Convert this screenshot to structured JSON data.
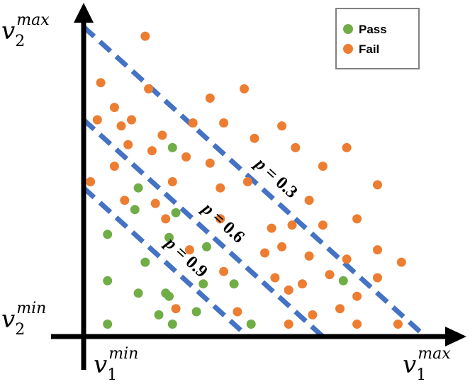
{
  "chart_data": {
    "type": "scatter",
    "title": "",
    "axes": {
      "x": {
        "min_label_base": "v",
        "min_label_sub": "1",
        "min_label_sup": "min",
        "max_label_base": "v",
        "max_label_sub": "1",
        "max_label_sup": "max"
      },
      "y": {
        "min_label_base": "v",
        "min_label_sub": "2",
        "min_label_sup": "min",
        "max_label_base": "v",
        "max_label_sub": "2",
        "max_label_sup": "max"
      }
    },
    "xlim": [
      0,
      1
    ],
    "ylim": [
      0,
      1
    ],
    "grid": false,
    "legend": {
      "placement": "top-right",
      "entries": [
        {
          "label": "Pass",
          "color": "#70AD47"
        },
        {
          "label": "Fail",
          "color": "#ED7D31"
        }
      ]
    },
    "iso_lines": [
      {
        "label_var": "p",
        "label_eq": " = ",
        "value": "0.3",
        "x_intercept": 1.0,
        "y_intercept": 1.0,
        "color": "#4472C4"
      },
      {
        "label_var": "p",
        "label_eq": " = ",
        "value": "0.6",
        "x_intercept": 0.7,
        "y_intercept": 0.7,
        "color": "#4472C4"
      },
      {
        "label_var": "p",
        "label_eq": " = ",
        "value": "0.9",
        "x_intercept": 0.48,
        "y_intercept": 0.48,
        "color": "#4472C4"
      }
    ],
    "series": [
      {
        "name": "Pass",
        "color": "#70AD47",
        "points": [
          [
            0.26,
            0.61
          ],
          [
            0.16,
            0.48
          ],
          [
            0.15,
            0.41
          ],
          [
            0.27,
            0.4
          ],
          [
            0.07,
            0.33
          ],
          [
            0.18,
            0.24
          ],
          [
            0.25,
            0.32
          ],
          [
            0.36,
            0.29
          ],
          [
            0.25,
            0.13
          ],
          [
            0.07,
            0.18
          ],
          [
            0.16,
            0.14
          ],
          [
            0.24,
            0.14
          ],
          [
            0.35,
            0.17
          ],
          [
            0.44,
            0.17
          ],
          [
            0.22,
            0.07
          ],
          [
            0.33,
            0.08
          ],
          [
            0.26,
            0.04
          ],
          [
            0.07,
            0.04
          ],
          [
            0.49,
            0.04
          ],
          [
            0.76,
            0.18
          ]
        ]
      },
      {
        "name": "Fail",
        "color": "#ED7D31",
        "points": [
          [
            0.18,
            0.97
          ],
          [
            0.05,
            0.82
          ],
          [
            0.19,
            0.8
          ],
          [
            0.37,
            0.77
          ],
          [
            0.47,
            0.8
          ],
          [
            0.09,
            0.74
          ],
          [
            0.04,
            0.7
          ],
          [
            0.11,
            0.68
          ],
          [
            0.14,
            0.7
          ],
          [
            0.32,
            0.69
          ],
          [
            0.41,
            0.69
          ],
          [
            0.58,
            0.68
          ],
          [
            0.23,
            0.65
          ],
          [
            0.5,
            0.64
          ],
          [
            0.13,
            0.62
          ],
          [
            0.2,
            0.6
          ],
          [
            0.62,
            0.61
          ],
          [
            0.77,
            0.61
          ],
          [
            0.09,
            0.55
          ],
          [
            0.3,
            0.58
          ],
          [
            0.37,
            0.56
          ],
          [
            0.7,
            0.55
          ],
          [
            0.02,
            0.5
          ],
          [
            0.26,
            0.5
          ],
          [
            0.4,
            0.48
          ],
          [
            0.48,
            0.5
          ],
          [
            0.86,
            0.49
          ],
          [
            0.12,
            0.44
          ],
          [
            0.21,
            0.43
          ],
          [
            0.66,
            0.44
          ],
          [
            0.24,
            0.38
          ],
          [
            0.4,
            0.38
          ],
          [
            0.55,
            0.35
          ],
          [
            0.61,
            0.36
          ],
          [
            0.7,
            0.36
          ],
          [
            0.8,
            0.38
          ],
          [
            0.31,
            0.28
          ],
          [
            0.53,
            0.27
          ],
          [
            0.58,
            0.29
          ],
          [
            0.66,
            0.26
          ],
          [
            0.77,
            0.25
          ],
          [
            0.86,
            0.28
          ],
          [
            0.93,
            0.24
          ],
          [
            0.41,
            0.21
          ],
          [
            0.56,
            0.19
          ],
          [
            0.64,
            0.17
          ],
          [
            0.72,
            0.2
          ],
          [
            0.86,
            0.19
          ],
          [
            0.27,
            0.09
          ],
          [
            0.45,
            0.08
          ],
          [
            0.6,
            0.15
          ],
          [
            0.8,
            0.13
          ],
          [
            0.67,
            0.07
          ],
          [
            0.75,
            0.09
          ],
          [
            0.6,
            0.04
          ],
          [
            0.8,
            0.04
          ],
          [
            0.92,
            0.04
          ]
        ]
      }
    ]
  }
}
